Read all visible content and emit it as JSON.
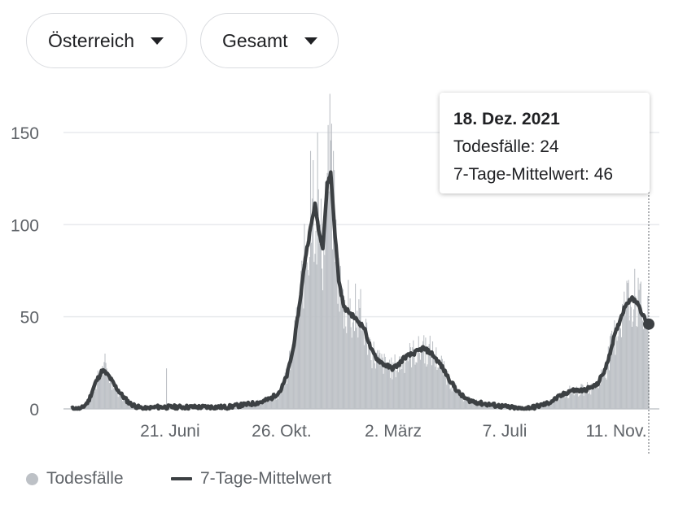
{
  "filters": {
    "country": "Österreich",
    "metric": "Gesamt"
  },
  "tooltip": {
    "date": "18. Dez. 2021",
    "deaths_label": "Todesfälle",
    "deaths_value": "24",
    "avg_label": "7-Tage-Mittelwert",
    "avg_value": "46"
  },
  "legend": {
    "deaths": "Todesfälle",
    "avg": "7-Tage-Mittelwert"
  },
  "chart_data": {
    "type": "bar",
    "title": "",
    "xlabel": "",
    "ylabel": "",
    "ylim": [
      0,
      170
    ],
    "yticks": [
      0,
      50,
      100,
      150
    ],
    "x_start": "2020-03-01",
    "x_end": "2021-12-18",
    "xticks": [
      {
        "date": "2020-06-21",
        "label": "21. Juni"
      },
      {
        "date": "2020-10-26",
        "label": "26. Okt."
      },
      {
        "date": "2021-03-02",
        "label": "2. März"
      },
      {
        "date": "2021-07-07",
        "label": "7. Juli"
      },
      {
        "date": "2021-11-11",
        "label": "11. Nov."
      }
    ],
    "grid": true,
    "legend_position": "bottom-left",
    "colors": {
      "bars": "#bdc1c6",
      "line": "#3c4043",
      "grid": "#e8eaed"
    },
    "series": [
      {
        "name": "7-Tage-Mittelwert",
        "kind": "line",
        "points": [
          [
            "2020-03-01",
            0
          ],
          [
            "2020-03-12",
            0
          ],
          [
            "2020-03-20",
            4
          ],
          [
            "2020-03-28",
            14
          ],
          [
            "2020-04-05",
            21
          ],
          [
            "2020-04-12",
            18
          ],
          [
            "2020-04-20",
            12
          ],
          [
            "2020-04-28",
            7
          ],
          [
            "2020-05-06",
            3
          ],
          [
            "2020-05-15",
            1
          ],
          [
            "2020-05-25",
            0
          ],
          [
            "2020-06-05",
            1
          ],
          [
            "2020-06-20",
            1
          ],
          [
            "2020-07-10",
            1
          ],
          [
            "2020-08-01",
            1
          ],
          [
            "2020-08-25",
            1
          ],
          [
            "2020-09-10",
            2
          ],
          [
            "2020-09-25",
            3
          ],
          [
            "2020-10-05",
            4
          ],
          [
            "2020-10-15",
            6
          ],
          [
            "2020-10-25",
            10
          ],
          [
            "2020-11-01",
            18
          ],
          [
            "2020-11-08",
            32
          ],
          [
            "2020-11-15",
            55
          ],
          [
            "2020-11-22",
            82
          ],
          [
            "2020-11-28",
            98
          ],
          [
            "2020-12-03",
            111
          ],
          [
            "2020-12-08",
            95
          ],
          [
            "2020-12-12",
            88
          ],
          [
            "2020-12-17",
            122
          ],
          [
            "2020-12-21",
            128
          ],
          [
            "2020-12-25",
            100
          ],
          [
            "2020-12-30",
            70
          ],
          [
            "2021-01-05",
            55
          ],
          [
            "2021-01-12",
            52
          ],
          [
            "2021-01-20",
            48
          ],
          [
            "2021-01-28",
            44
          ],
          [
            "2021-02-05",
            32
          ],
          [
            "2021-02-12",
            27
          ],
          [
            "2021-02-20",
            24
          ],
          [
            "2021-03-01",
            22
          ],
          [
            "2021-03-08",
            24
          ],
          [
            "2021-03-15",
            28
          ],
          [
            "2021-03-25",
            30
          ],
          [
            "2021-04-05",
            33
          ],
          [
            "2021-04-15",
            30
          ],
          [
            "2021-04-25",
            24
          ],
          [
            "2021-05-05",
            16
          ],
          [
            "2021-05-15",
            9
          ],
          [
            "2021-05-25",
            5
          ],
          [
            "2021-06-10",
            3
          ],
          [
            "2021-06-25",
            2
          ],
          [
            "2021-07-10",
            1
          ],
          [
            "2021-07-25",
            0
          ],
          [
            "2021-08-10",
            1
          ],
          [
            "2021-08-25",
            3
          ],
          [
            "2021-09-05",
            6
          ],
          [
            "2021-09-20",
            10
          ],
          [
            "2021-10-05",
            10
          ],
          [
            "2021-10-20",
            13
          ],
          [
            "2021-10-30",
            22
          ],
          [
            "2021-11-08",
            38
          ],
          [
            "2021-11-15",
            48
          ],
          [
            "2021-11-22",
            57
          ],
          [
            "2021-11-28",
            60
          ],
          [
            "2021-12-05",
            58
          ],
          [
            "2021-12-12",
            50
          ],
          [
            "2021-12-18",
            46
          ]
        ]
      },
      {
        "name": "Todesfälle",
        "kind": "bar",
        "highlights": [
          [
            "2020-04-08",
            30
          ],
          [
            "2020-06-17",
            22
          ],
          [
            "2020-11-28",
            140
          ],
          [
            "2020-12-01",
            135
          ],
          [
            "2020-12-06",
            150
          ],
          [
            "2020-12-20",
            171
          ],
          [
            "2020-12-24",
            140
          ],
          [
            "2021-01-10",
            70
          ],
          [
            "2021-01-18",
            68
          ],
          [
            "2021-01-24",
            65
          ],
          [
            "2021-04-06",
            40
          ],
          [
            "2021-11-25",
            70
          ],
          [
            "2021-12-02",
            76
          ],
          [
            "2021-12-08",
            68
          ],
          [
            "2021-12-18",
            24
          ]
        ]
      }
    ]
  }
}
